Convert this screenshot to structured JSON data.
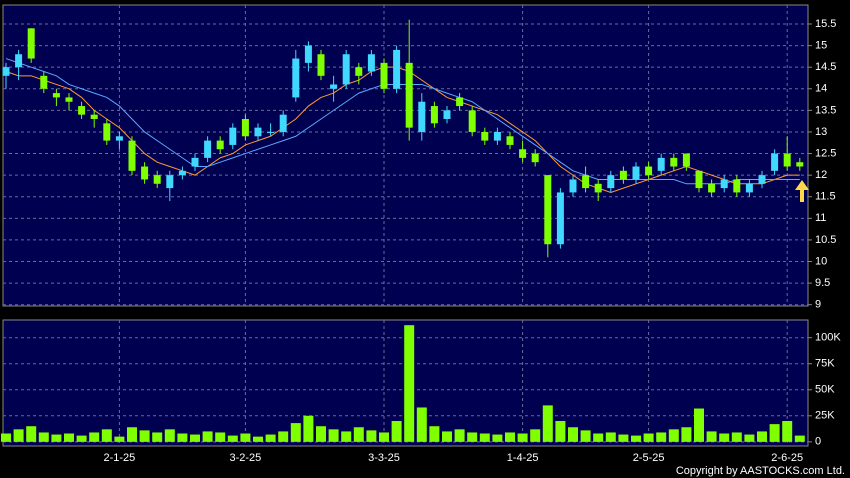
{
  "chart_data": [
    {
      "type": "candlestick",
      "categories": [
        null,
        null,
        null,
        null,
        null,
        null,
        null,
        null,
        null,
        "2-1-25",
        null,
        null,
        null,
        null,
        null,
        null,
        null,
        null,
        null,
        "3-2-25",
        null,
        null,
        null,
        null,
        null,
        null,
        null,
        null,
        null,
        null,
        "3-3-25",
        null,
        null,
        null,
        null,
        null,
        null,
        null,
        null,
        null,
        null,
        "1-4-25",
        null,
        null,
        null,
        null,
        null,
        null,
        null,
        null,
        null,
        "2-5-25",
        null,
        null,
        null,
        null,
        null,
        null,
        null,
        null,
        null,
        null,
        "2-6-25",
        null
      ],
      "open": [
        14.3,
        14.5,
        15.4,
        14.3,
        13.9,
        13.8,
        13.6,
        13.4,
        13.2,
        12.8,
        12.8,
        12.2,
        12.0,
        11.7,
        12.0,
        12.2,
        12.4,
        12.8,
        12.7,
        13.3,
        12.9,
        13.0,
        13.0,
        13.8,
        14.6,
        14.8,
        14.0,
        14.1,
        14.5,
        14.4,
        14.6,
        14.0,
        14.6,
        13.0,
        13.6,
        13.3,
        13.8,
        13.5,
        13.0,
        12.8,
        12.9,
        12.6,
        12.5,
        12.0,
        10.4,
        11.6,
        12.0,
        11.8,
        11.7,
        12.1,
        11.9,
        12.2,
        12.1,
        12.4,
        12.5,
        12.1,
        11.8,
        11.7,
        11.9,
        11.6,
        11.8,
        12.1,
        12.5,
        12.3
      ],
      "high": [
        14.6,
        14.9,
        15.4,
        14.4,
        14.0,
        13.9,
        13.7,
        13.5,
        13.3,
        13.0,
        12.9,
        12.3,
        12.1,
        12.1,
        12.2,
        12.5,
        12.9,
        12.9,
        13.2,
        13.4,
        13.2,
        13.2,
        13.5,
        14.9,
        15.1,
        14.9,
        14.3,
        14.9,
        14.6,
        14.9,
        14.7,
        15.0,
        15.6,
        13.9,
        13.7,
        13.6,
        13.9,
        13.6,
        13.1,
        13.1,
        13.0,
        12.8,
        12.6,
        12.0,
        11.7,
        12.0,
        12.2,
        11.9,
        12.1,
        12.2,
        12.3,
        12.3,
        12.5,
        12.5,
        12.5,
        12.1,
        11.9,
        12.0,
        12.0,
        11.9,
        12.1,
        12.6,
        12.9,
        12.4
      ],
      "low": [
        14.0,
        14.2,
        14.6,
        13.9,
        13.6,
        13.5,
        13.3,
        13.1,
        12.7,
        12.6,
        12.0,
        11.8,
        11.7,
        11.4,
        11.9,
        12.1,
        12.3,
        12.5,
        12.6,
        12.8,
        12.8,
        12.9,
        12.9,
        13.7,
        14.4,
        14.2,
        13.7,
        14.0,
        14.1,
        14.3,
        13.9,
        13.9,
        12.8,
        12.8,
        13.1,
        13.2,
        13.5,
        12.9,
        12.7,
        12.7,
        12.6,
        12.3,
        12.2,
        10.1,
        10.3,
        11.5,
        11.6,
        11.4,
        11.6,
        11.8,
        11.8,
        11.9,
        12.0,
        12.1,
        12.1,
        11.6,
        11.5,
        11.6,
        11.5,
        11.5,
        11.7,
        12.0,
        12.1,
        12.1
      ],
      "close": [
        14.5,
        14.8,
        14.7,
        14.0,
        13.8,
        13.7,
        13.4,
        13.3,
        12.8,
        12.9,
        12.1,
        11.9,
        11.8,
        12.0,
        12.1,
        12.4,
        12.8,
        12.6,
        13.1,
        12.9,
        13.1,
        13.0,
        13.4,
        14.7,
        15.0,
        14.3,
        14.1,
        14.8,
        14.3,
        14.8,
        14.0,
        14.9,
        13.1,
        13.7,
        13.2,
        13.5,
        13.6,
        13.0,
        12.8,
        13.0,
        12.7,
        12.4,
        12.3,
        10.4,
        11.6,
        11.9,
        11.7,
        11.6,
        12.0,
        11.9,
        12.2,
        12.0,
        12.4,
        12.2,
        12.2,
        11.7,
        11.6,
        11.9,
        11.6,
        11.8,
        12.0,
        12.5,
        12.2,
        12.2
      ],
      "up_color": "#40d8ff",
      "down_color": "#80ff00",
      "lines": [
        {
          "color": "#ff9933",
          "values": [
            14.4,
            14.3,
            14.3,
            14.2,
            14.1,
            14.0,
            13.8,
            13.5,
            13.3,
            13.1,
            12.8,
            12.5,
            12.3,
            12.2,
            12.1,
            12.0,
            12.2,
            12.4,
            12.5,
            12.7,
            12.8,
            12.9,
            13.1,
            13.3,
            13.6,
            13.8,
            13.9,
            14.1,
            14.2,
            14.4,
            14.5,
            14.5,
            14.4,
            14.2,
            14.0,
            13.8,
            13.7,
            13.6,
            13.5,
            13.4,
            13.2,
            13.0,
            12.8,
            12.5,
            12.2,
            12.0,
            11.8,
            11.7,
            11.6,
            11.7,
            11.8,
            11.9,
            12.0,
            12.1,
            12.2,
            12.1,
            12.0,
            11.9,
            11.8,
            11.8,
            11.8,
            11.9,
            12.0,
            12.0
          ]
        },
        {
          "color": "#5aa8ff",
          "values": [
            14.7,
            14.6,
            14.5,
            14.4,
            14.3,
            14.1,
            14.0,
            13.9,
            13.8,
            13.6,
            13.3,
            13.0,
            12.8,
            12.6,
            12.4,
            12.2,
            12.2,
            12.3,
            12.4,
            12.5,
            12.6,
            12.7,
            12.8,
            12.9,
            13.1,
            13.3,
            13.5,
            13.7,
            13.9,
            14.0,
            14.1,
            14.1,
            14.1,
            14.1,
            14.0,
            13.9,
            13.8,
            13.7,
            13.5,
            13.3,
            13.1,
            12.9,
            12.7,
            12.5,
            12.3,
            12.1,
            12.0,
            11.9,
            11.9,
            11.9,
            11.9,
            11.9,
            11.9,
            11.9,
            11.8,
            11.8,
            11.8,
            11.8,
            11.9,
            11.9,
            11.9,
            11.9,
            11.9,
            11.9
          ]
        }
      ],
      "ylim": [
        8.97,
        15.94
      ],
      "yticks": [
        9,
        9.5,
        10,
        10.5,
        11,
        11.5,
        12,
        12.5,
        13,
        13.5,
        14,
        14.5,
        15,
        15.5
      ],
      "grid": true
    },
    {
      "type": "bar",
      "values": [
        8000,
        12000,
        15000,
        9000,
        7000,
        8000,
        6000,
        9000,
        12000,
        5000,
        14000,
        11000,
        9000,
        12000,
        8000,
        7000,
        10000,
        9000,
        6000,
        8000,
        5000,
        7000,
        10000,
        18000,
        25000,
        15000,
        12000,
        10000,
        14000,
        11000,
        9000,
        20000,
        112000,
        33000,
        15000,
        10000,
        12000,
        9000,
        8000,
        7000,
        9000,
        8000,
        12000,
        35000,
        20000,
        14000,
        11000,
        8000,
        9000,
        7000,
        6000,
        8000,
        9000,
        12000,
        14000,
        32000,
        10000,
        8000,
        9000,
        7000,
        10000,
        17000,
        20000,
        6000
      ],
      "color": "#80ff00",
      "ylim": [
        -4000,
        117000
      ],
      "yticks": [
        {
          "value": 0,
          "label": "0"
        },
        {
          "value": 25000,
          "label": "25K"
        },
        {
          "value": 50000,
          "label": "50K"
        },
        {
          "value": 75000,
          "label": "75K"
        },
        {
          "value": 100000,
          "label": "100K"
        }
      ],
      "grid": true
    }
  ],
  "footer": {
    "copyright": "Copyright by AASTOCKS.com Ltd."
  }
}
